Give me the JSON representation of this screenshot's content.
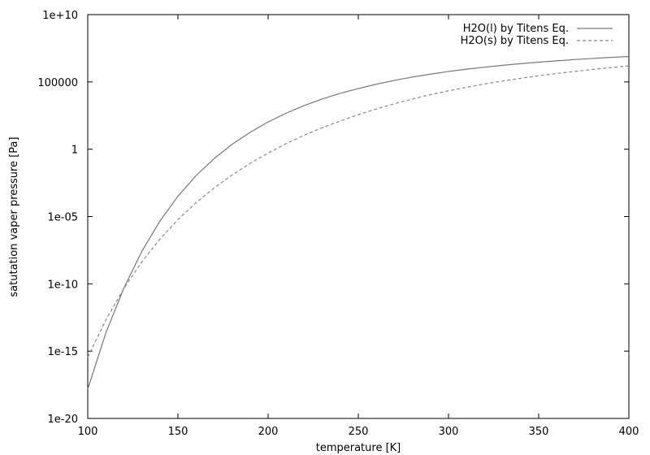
{
  "chart_data": {
    "type": "line",
    "title": "",
    "xlabel": "temperature [K]",
    "ylabel": "satutation vaper pressure [Pa]",
    "xlim": [
      100,
      400
    ],
    "ylim": [
      1e-20,
      10000000000.0
    ],
    "yscale": "log",
    "grid": false,
    "legend_position": "top-right",
    "x_ticks": [
      100,
      150,
      200,
      250,
      300,
      350,
      400
    ],
    "x_tick_labels": [
      "100",
      "150",
      "200",
      "250",
      "300",
      "350",
      "400"
    ],
    "y_ticks": [
      1e-20,
      1e-15,
      1e-10,
      1e-05,
      1,
      100000,
      10000000000.0
    ],
    "y_tick_labels": [
      "1e-20",
      "1e-15",
      "1e-10",
      "1e-05",
      "1",
      "100000",
      "1e+10"
    ],
    "series": [
      {
        "name": "H2O(l) by Titens Eq.",
        "color": "#777777",
        "dash": "solid",
        "x": [
          100,
          110,
          120,
          130,
          140,
          150,
          160,
          170,
          180,
          190,
          200,
          210,
          220,
          230,
          240,
          250,
          260,
          270,
          280,
          290,
          300,
          310,
          320,
          330,
          340,
          350,
          360,
          370,
          380,
          390,
          400
        ],
        "y": [
          1.5e-18,
          2.2e-14,
          4.8e-11,
          2.6e-08,
          4.6e-06,
          0.00032,
          0.0108,
          0.2,
          2.3,
          18,
          106,
          480,
          1750,
          5400,
          14300,
          32000,
          68000,
          130000,
          230000,
          380000,
          600000,
          890000,
          1250000,
          1720000,
          2280000,
          2940000,
          3700000,
          4580000,
          5550000,
          6650000,
          7800000
        ]
      },
      {
        "name": "H2O(s) by Titens Eq.",
        "color": "#888888",
        "dash": "dashed",
        "x": [
          100,
          110,
          120,
          130,
          140,
          150,
          160,
          170,
          180,
          190,
          200,
          210,
          220,
          230,
          240,
          250,
          260,
          270,
          280,
          290,
          300,
          310,
          320,
          330,
          340,
          350,
          360,
          370,
          380,
          390,
          400
        ],
        "y": [
          3.5e-16,
          2e-13,
          4.5e-11,
          4.3e-09,
          2.1e-07,
          5.9e-06,
          0.000105,
          0.0013,
          0.0122,
          0.088,
          0.52,
          2.6,
          11,
          40,
          125,
          370,
          980,
          2400,
          5400,
          11300,
          22000,
          40000,
          70000,
          117000,
          186000,
          285000,
          423000,
          607000,
          850000,
          1160000,
          1550000
        ]
      }
    ]
  }
}
